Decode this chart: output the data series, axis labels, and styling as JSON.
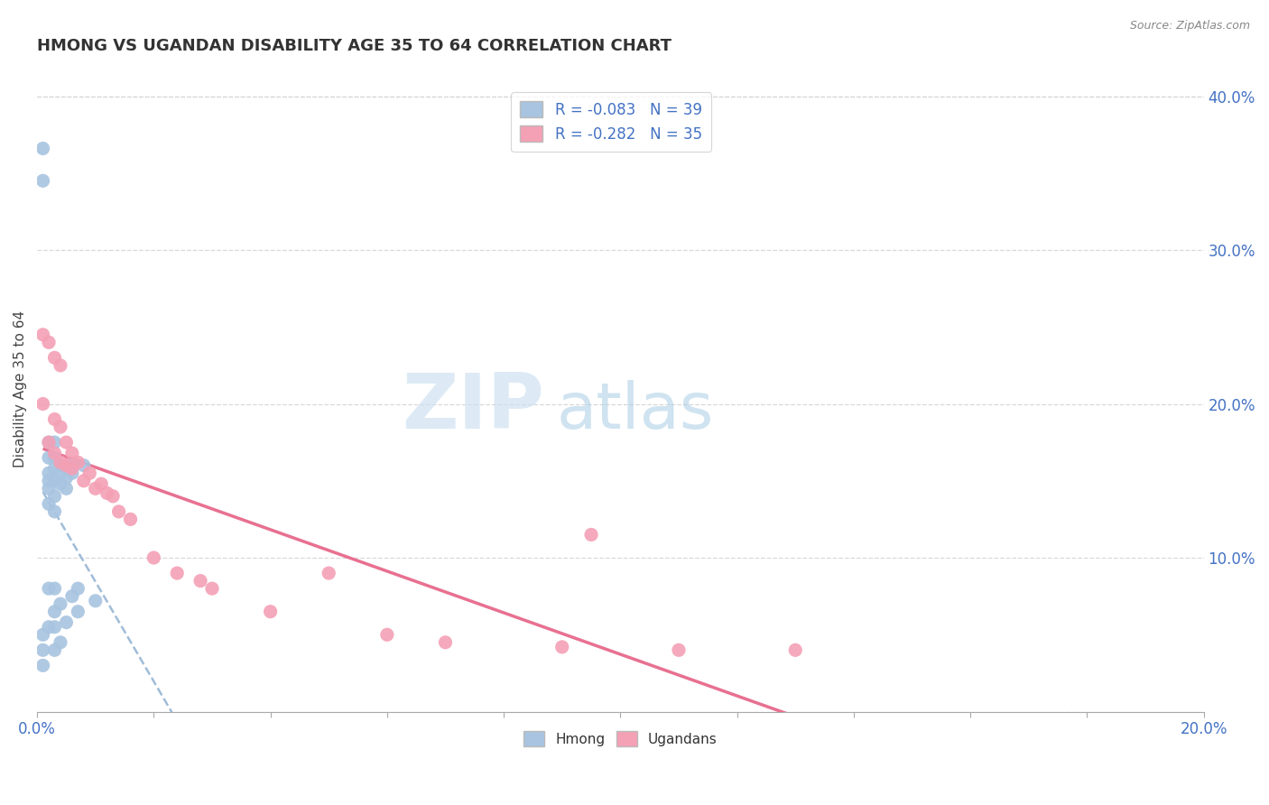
{
  "title": "HMONG VS UGANDAN DISABILITY AGE 35 TO 64 CORRELATION CHART",
  "source": "Source: ZipAtlas.com",
  "ylabel": "Disability Age 35 to 64",
  "xlim": [
    0.0,
    0.2
  ],
  "ylim": [
    0.0,
    0.42
  ],
  "y_ticks_right": [
    0.0,
    0.1,
    0.2,
    0.3,
    0.4
  ],
  "y_tick_labels_right": [
    "",
    "10.0%",
    "20.0%",
    "30.0%",
    "40.0%"
  ],
  "hmong_R": -0.083,
  "hmong_N": 39,
  "ugandan_R": -0.282,
  "ugandan_N": 35,
  "hmong_color": "#a8c4e0",
  "ugandan_color": "#f4a0b5",
  "background_color": "#ffffff",
  "grid_color": "#d8d8d8",
  "hmong_x": [
    0.001,
    0.001,
    0.001,
    0.001,
    0.001,
    0.002,
    0.002,
    0.002,
    0.002,
    0.002,
    0.002,
    0.002,
    0.002,
    0.003,
    0.003,
    0.003,
    0.003,
    0.003,
    0.003,
    0.003,
    0.003,
    0.003,
    0.003,
    0.004,
    0.004,
    0.004,
    0.004,
    0.004,
    0.005,
    0.005,
    0.005,
    0.005,
    0.006,
    0.006,
    0.006,
    0.007,
    0.007,
    0.008,
    0.01
  ],
  "hmong_y": [
    0.366,
    0.345,
    0.05,
    0.04,
    0.03,
    0.175,
    0.165,
    0.155,
    0.15,
    0.145,
    0.135,
    0.08,
    0.055,
    0.175,
    0.165,
    0.158,
    0.15,
    0.14,
    0.13,
    0.08,
    0.065,
    0.055,
    0.04,
    0.16,
    0.155,
    0.148,
    0.07,
    0.045,
    0.158,
    0.152,
    0.145,
    0.058,
    0.16,
    0.155,
    0.075,
    0.08,
    0.065,
    0.16,
    0.072
  ],
  "ugandan_x": [
    0.001,
    0.001,
    0.002,
    0.002,
    0.003,
    0.003,
    0.003,
    0.004,
    0.004,
    0.004,
    0.005,
    0.005,
    0.006,
    0.006,
    0.007,
    0.008,
    0.009,
    0.01,
    0.011,
    0.012,
    0.013,
    0.014,
    0.016,
    0.02,
    0.024,
    0.028,
    0.03,
    0.04,
    0.05,
    0.06,
    0.07,
    0.09,
    0.095,
    0.11,
    0.13
  ],
  "ugandan_y": [
    0.245,
    0.2,
    0.24,
    0.175,
    0.23,
    0.19,
    0.168,
    0.225,
    0.185,
    0.162,
    0.175,
    0.16,
    0.168,
    0.158,
    0.162,
    0.15,
    0.155,
    0.145,
    0.148,
    0.142,
    0.14,
    0.13,
    0.125,
    0.1,
    0.09,
    0.085,
    0.08,
    0.065,
    0.09,
    0.05,
    0.045,
    0.042,
    0.115,
    0.04,
    0.04
  ]
}
